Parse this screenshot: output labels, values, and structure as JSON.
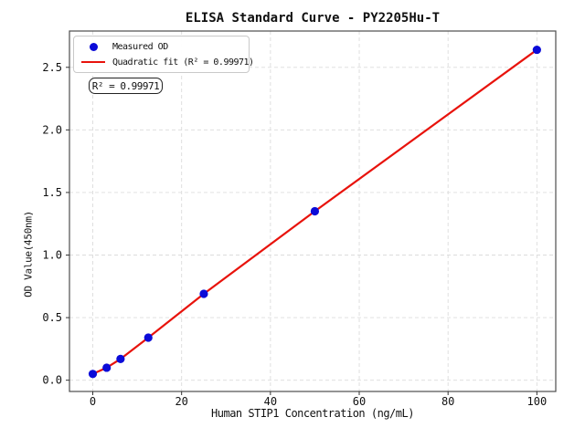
{
  "chart_data": {
    "type": "scatter",
    "title": "ELISA Standard Curve - PY2205Hu-T",
    "xlabel": "Human STIP1 Concentration (ng/mL)",
    "ylabel": "OD Value(450nm)",
    "xlim": [
      -5.25,
      104.25
    ],
    "ylim": [
      -0.09,
      2.79
    ],
    "x_ticks": [
      0,
      20,
      40,
      60,
      80,
      100
    ],
    "x_tick_labels": [
      "0",
      "20",
      "40",
      "60",
      "80",
      "100"
    ],
    "y_ticks": [
      0.0,
      0.5,
      1.0,
      1.5,
      2.0,
      2.5
    ],
    "y_tick_labels": [
      "0.0",
      "0.5",
      "1.0",
      "1.5",
      "2.0",
      "2.5"
    ],
    "grid": true,
    "legend_position": "upper left",
    "series": [
      {
        "name": "Measured OD",
        "kind": "scatter",
        "color": "#0b0bd8",
        "x": [
          0,
          3.125,
          6.25,
          12.5,
          25,
          50,
          100
        ],
        "y": [
          0.05,
          0.1,
          0.17,
          0.34,
          0.69,
          1.35,
          2.64
        ]
      },
      {
        "name": "Quadratic fit (R² = 0.99971)",
        "kind": "line",
        "color": "#e8130c",
        "x": [
          0,
          3.125,
          6.25,
          12.5,
          25,
          50,
          100
        ],
        "y": [
          0.05,
          0.1,
          0.17,
          0.34,
          0.69,
          1.35,
          2.64
        ]
      }
    ],
    "legend": {
      "entries": [
        {
          "label": "Measured OD",
          "marker": "dot",
          "color": "#0b0bd8"
        },
        {
          "label": "Quadratic fit (R² = 0.99971)",
          "marker": "line",
          "color": "#e8130c"
        }
      ]
    },
    "annotation": {
      "label": "R² = 0.99971"
    },
    "r_squared": 0.99971
  }
}
